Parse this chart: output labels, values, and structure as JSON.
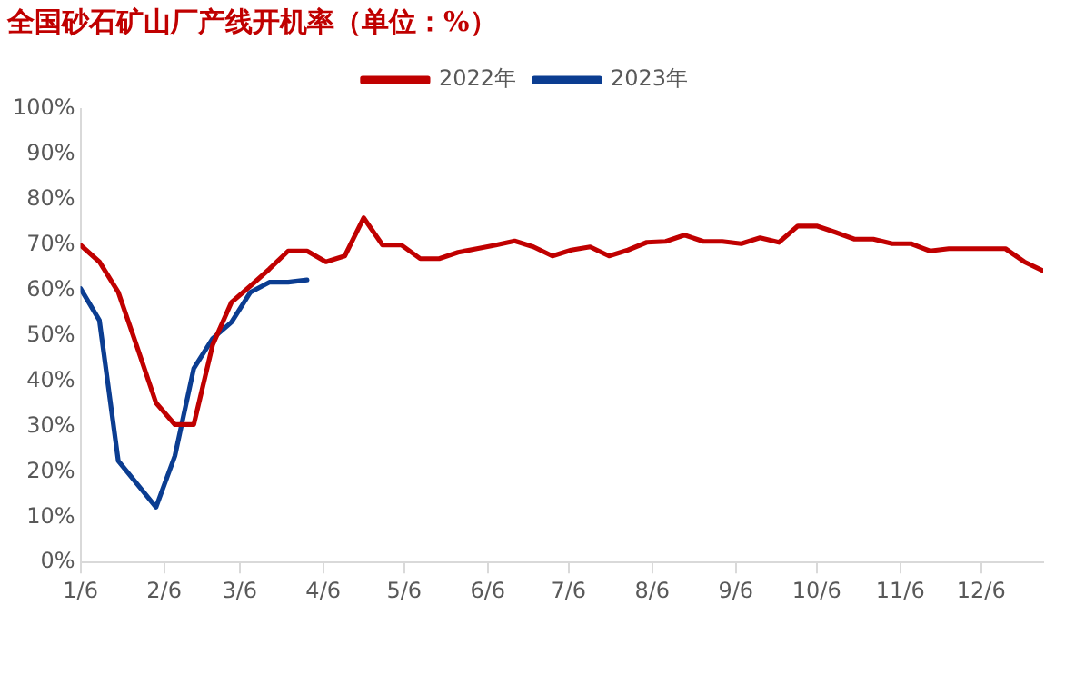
{
  "chart_data": {
    "type": "line",
    "title": "全国砂石矿山厂产线开机率（单位：%）",
    "x": [
      "--01-06",
      "--01-13",
      "--01-20",
      "--01-27",
      "--02-03",
      "--02-10",
      "--02-17",
      "--02-24",
      "--03-03",
      "--03-10",
      "--03-17",
      "--03-24",
      "--03-31",
      "--04-07",
      "--04-14",
      "--04-21",
      "--04-28",
      "--05-05",
      "--05-12",
      "--05-19",
      "--05-26",
      "--06-02",
      "--06-09",
      "--06-16",
      "--06-23",
      "--06-30",
      "--07-07",
      "--07-14",
      "--07-21",
      "--07-28",
      "--08-04",
      "--08-11",
      "--08-18",
      "--08-25",
      "--09-01",
      "--09-08",
      "--09-15",
      "--09-22",
      "--09-29",
      "--10-06",
      "--10-13",
      "--10-20",
      "--10-27",
      "--11-03",
      "--11-10",
      "--11-17",
      "--11-24",
      "--12-01",
      "--12-08",
      "--12-15",
      "--12-22",
      "--12-29"
    ],
    "series": [
      {
        "name": "2022年",
        "color": "#c00000",
        "values": [
          70,
          66.3,
          59.6,
          47.5,
          35.2,
          30.4,
          30.4,
          48,
          57.4,
          61,
          64.7,
          68.7,
          68.7,
          66.3,
          67.6,
          76,
          70,
          70,
          67,
          67,
          68.4,
          69.2,
          70,
          70.9,
          69.6,
          67.6,
          68.9,
          69.6,
          67.6,
          68.9,
          70.6,
          70.8,
          72.2,
          70.8,
          70.8,
          70.3,
          71.6,
          70.6,
          74.2,
          74.2,
          72.8,
          71.3,
          71.3,
          70.3,
          70.3,
          68.7,
          69.2,
          69.2,
          69.2,
          69.2,
          66.3,
          64.3
        ]
      },
      {
        "name": "2023年",
        "color": "#0b3d91",
        "x": [
          "--01-06",
          "--01-13",
          "--01-20",
          "--01-27",
          "--02-03",
          "--02-10",
          "--02-17",
          "--02-24",
          "--03-03",
          "--03-10",
          "--03-17",
          "--03-24",
          "--03-31"
        ],
        "values": [
          60.4,
          53.4,
          22.4,
          17.3,
          12.2,
          23.5,
          42.8,
          49.4,
          53,
          59.6,
          61.8,
          61.8,
          62.3
        ]
      }
    ],
    "xlim": [
      "--01-06",
      "--12-29"
    ],
    "xticks": [
      {
        "value": "--01-06",
        "label": "1/6"
      },
      {
        "value": "--02-06",
        "label": "2/6"
      },
      {
        "value": "--03-06",
        "label": "3/6"
      },
      {
        "value": "--04-06",
        "label": "4/6"
      },
      {
        "value": "--05-06",
        "label": "5/6"
      },
      {
        "value": "--06-06",
        "label": "6/6"
      },
      {
        "value": "--07-06",
        "label": "7/6"
      },
      {
        "value": "--08-06",
        "label": "8/6"
      },
      {
        "value": "--09-06",
        "label": "9/6"
      },
      {
        "value": "--10-06",
        "label": "10/6"
      },
      {
        "value": "--11-06",
        "label": "11/6"
      },
      {
        "value": "--12-06",
        "label": "12/6"
      }
    ],
    "ylim": [
      0,
      100
    ],
    "yticks": [
      {
        "value": 0,
        "label": "0%"
      },
      {
        "value": 10,
        "label": "10%"
      },
      {
        "value": 20,
        "label": "20%"
      },
      {
        "value": 30,
        "label": "30%"
      },
      {
        "value": 40,
        "label": "40%"
      },
      {
        "value": 50,
        "label": "50%"
      },
      {
        "value": 60,
        "label": "60%"
      },
      {
        "value": 70,
        "label": "70%"
      },
      {
        "value": 80,
        "label": "80%"
      },
      {
        "value": 90,
        "label": "90%"
      },
      {
        "value": 100,
        "label": "100%"
      }
    ],
    "grid": false,
    "legend": "top",
    "marker": "none",
    "line_style": "solid"
  }
}
